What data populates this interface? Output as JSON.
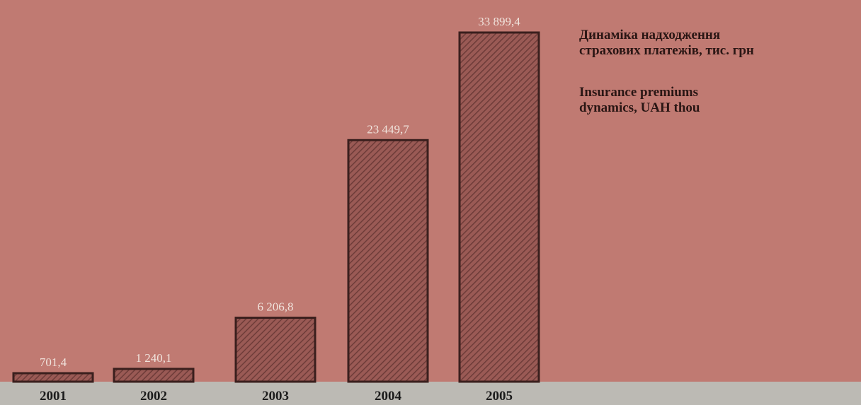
{
  "colors": {
    "background": "#c07a72",
    "bar_fill": "#9a5a55",
    "bar_hatch": "#6e3c39",
    "bar_stroke": "#3a1f1d",
    "axis_band": "#bcbab4"
  },
  "caption": {
    "ua_line1": "Динаміка надходження",
    "ua_line2": "страхових платежів, тис. грн",
    "en_line1": "Insurance premiums",
    "en_line2": "dynamics, UAH thou"
  },
  "chart_data": {
    "type": "bar",
    "categories": [
      "2001",
      "2002",
      "2003",
      "2004",
      "2005"
    ],
    "values": [
      701.4,
      1240.1,
      6206.8,
      23449.7,
      33899.4
    ],
    "value_labels": [
      "701,4",
      "1 240,1",
      "6 206,8",
      "23 449,7",
      "33 899,4"
    ],
    "title": "",
    "xlabel": "",
    "ylabel": "",
    "ylim": [
      0,
      33899.4
    ],
    "grid": false,
    "legend": "none"
  }
}
